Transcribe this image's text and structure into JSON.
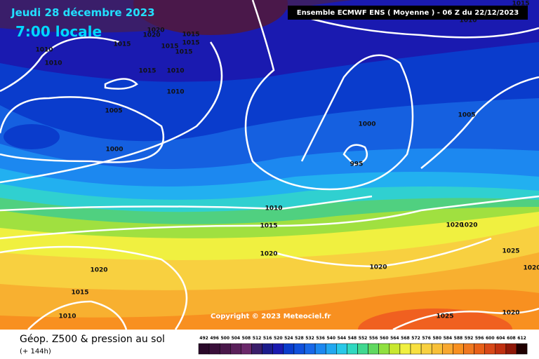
{
  "header": {
    "date": "Jeudi 28 décembre 2023",
    "time": "7:00 locale",
    "run": "Ensemble ECMWF ENS  ( Moyenne )  - 06 Z du 22/12/2023"
  },
  "isobar_labels": [
    1020,
    1020,
    1015,
    1015,
    1015,
    1015,
    1015,
    1010,
    1010,
    1015,
    1010,
    1010,
    1005,
    1000,
    1000,
    995,
    1005,
    1010,
    1015,
    1020,
    1020,
    1020,
    1020,
    1025,
    1020,
    1020,
    1015,
    1010,
    1025,
    1020,
    1010,
    1015
  ],
  "copyright": "Copyright © 2023 Meteociel.fr",
  "footer": {
    "title": "Géop. Z500 & pression au sol",
    "lead": "(+ 144h)"
  },
  "legend": [
    {
      "value": 492,
      "color": "#2a0a2a"
    },
    {
      "value": 496,
      "color": "#3a103a"
    },
    {
      "value": 500,
      "color": "#4a184a"
    },
    {
      "value": 504,
      "color": "#5a205a"
    },
    {
      "value": 508,
      "color": "#6a286a"
    },
    {
      "value": 512,
      "color": "#3a1e6a"
    },
    {
      "value": 516,
      "color": "#1c1c8c"
    },
    {
      "value": 520,
      "color": "#1a1ab0"
    },
    {
      "value": 524,
      "color": "#0a3ccc"
    },
    {
      "value": 528,
      "color": "#1050dc"
    },
    {
      "value": 532,
      "color": "#1868e8"
    },
    {
      "value": 536,
      "color": "#1c88f0"
    },
    {
      "value": 540,
      "color": "#22a8f0"
    },
    {
      "value": 544,
      "color": "#28c8e8"
    },
    {
      "value": 548,
      "color": "#30d8c0"
    },
    {
      "value": 552,
      "color": "#40d890"
    },
    {
      "value": 556,
      "color": "#60d860"
    },
    {
      "value": 560,
      "color": "#90e040"
    },
    {
      "value": 564,
      "color": "#c8e830"
    },
    {
      "value": 568,
      "color": "#f0f040"
    },
    {
      "value": 572,
      "color": "#f8e040"
    },
    {
      "value": 576,
      "color": "#f8d040"
    },
    {
      "value": 580,
      "color": "#f8c038"
    },
    {
      "value": 584,
      "color": "#f8a830"
    },
    {
      "value": 588,
      "color": "#f89020"
    },
    {
      "value": 592,
      "color": "#f07820"
    },
    {
      "value": 596,
      "color": "#e86018"
    },
    {
      "value": 600,
      "color": "#d84818"
    },
    {
      "value": 604,
      "color": "#c03010"
    },
    {
      "value": 608,
      "color": "#901808"
    },
    {
      "value": 612,
      "color": "#200000"
    }
  ]
}
